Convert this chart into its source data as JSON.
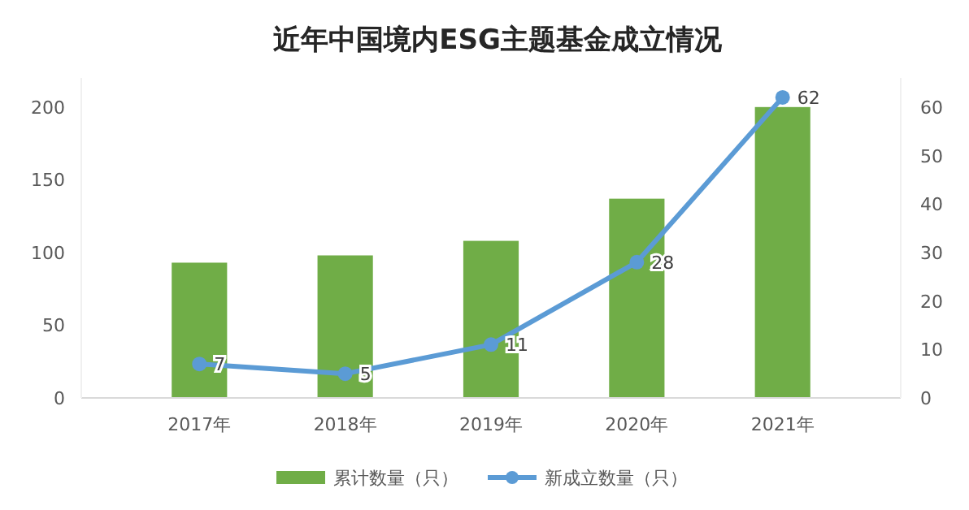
{
  "chart_data": {
    "type": "bar",
    "title": "近年中国境内ESG主题基金成立情况",
    "categories": [
      "2017年",
      "2018年",
      "2019年",
      "2020年",
      "2021年"
    ],
    "series": [
      {
        "name": "累计数量（只）",
        "color": "#70ad47",
        "values": [
          93,
          98,
          108,
          137,
          200
        ]
      },
      {
        "name": "新成立数量（只）",
        "type": "line",
        "axis": "y2",
        "color": "#5b9bd5",
        "values": [
          7,
          5,
          11,
          28,
          62
        ],
        "value_labels": [
          "7",
          "5",
          "11",
          "28",
          "62"
        ]
      }
    ],
    "ylim": [
      0,
      220
    ],
    "yticks": [
      0,
      50,
      100,
      150,
      200
    ],
    "y2lim": [
      0,
      66
    ],
    "y2ticks": [
      0,
      10,
      20,
      30,
      40,
      50,
      60
    ],
    "grid": false,
    "legend": "bottom",
    "marker": "circle",
    "line_style": "solid"
  }
}
